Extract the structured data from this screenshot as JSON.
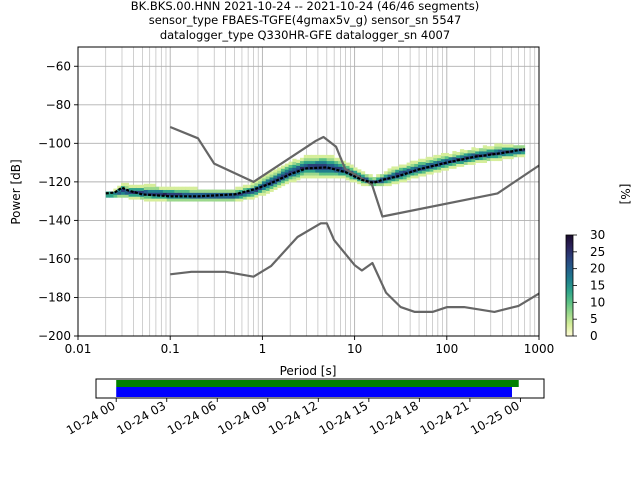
{
  "chart_data": [
    {
      "type": "heatmap",
      "title_lines": [
        "BK.BKS.00.HNN   2021-10-24 -- 2021-10-24  (46/46 segments)",
        "sensor_type FBAES-TGFE(4gmax5v_g) sensor_sn 5547",
        "datalogger_type Q330HR-GFE datalogger_sn 4007"
      ],
      "xlabel": "Period [s]",
      "ylabel": "Power [dB]",
      "xscale": "log",
      "xlim": [
        0.01,
        1000
      ],
      "ylim": [
        -200,
        -50
      ],
      "xticks": [
        0.01,
        0.1,
        1,
        10,
        100,
        1000
      ],
      "xtick_labels": [
        "0.01",
        "0.1",
        "1",
        "10",
        "100",
        "1000"
      ],
      "yticks": [
        -200,
        -180,
        -160,
        -140,
        -120,
        -100,
        -80,
        -60
      ],
      "ytick_labels": [
        "−200",
        "−180",
        "−160",
        "−140",
        "−120",
        "−100",
        "−80",
        "−60"
      ],
      "grid": true,
      "colorbar": {
        "label": "[%]",
        "range": [
          0,
          30
        ],
        "ticks": [
          0,
          5,
          10,
          15,
          20,
          25,
          30
        ],
        "tick_labels": [
          "0",
          "5",
          "10",
          "15",
          "20",
          "25",
          "30"
        ],
        "colormap": [
          "#fffbd6",
          "#d6ee9b",
          "#9bd88c",
          "#5cc185",
          "#2fa38a",
          "#1f7f8d",
          "#245e8a",
          "#2a3f7a",
          "#2a2158",
          "#1a0c2c"
        ]
      },
      "series": [
        {
          "role": "noise-model-high",
          "color": "#666666",
          "x": [
            0.1,
            0.2,
            0.3,
            0.8,
            3.8,
            4.6,
            6.3,
            7.9,
            15.4,
            20,
            354.8,
            1000
          ],
          "y": [
            -91.5,
            -97.4,
            -110.5,
            -120,
            -98.7,
            -96.7,
            -101.8,
            -113.3,
            -121.3,
            -138,
            -126,
            -111.5
          ]
        },
        {
          "role": "noise-model-low",
          "color": "#666666",
          "x": [
            0.1,
            0.17,
            0.4,
            0.8,
            1.24,
            2.4,
            4.3,
            5.0,
            6.0,
            10,
            12,
            15.6,
            21.9,
            31.6,
            45,
            70,
            101,
            154,
            328,
            600,
            1000
          ],
          "y": [
            -168,
            -166.7,
            -166.7,
            -169.2,
            -163.7,
            -148.6,
            -141.5,
            -141.5,
            -150.2,
            -163.2,
            -166,
            -162.1,
            -177.5,
            -185,
            -187.5,
            -187.5,
            -185,
            -185,
            -187.5,
            -184.4,
            -178
          ]
        },
        {
          "role": "mode",
          "color": "#000000",
          "x": [
            0.02,
            0.025,
            0.03,
            0.035,
            0.05,
            0.1,
            0.2,
            0.5,
            0.8,
            1.2,
            2,
            3,
            5,
            8,
            12,
            16,
            20,
            30,
            50,
            100,
            200,
            400,
            700
          ],
          "y": [
            -126,
            -125.5,
            -123,
            -124.5,
            -126.5,
            -127.5,
            -127.5,
            -126.5,
            -124,
            -121,
            -116,
            -113,
            -112.5,
            -115,
            -119,
            -120.5,
            -119,
            -117,
            -113.5,
            -110,
            -107,
            -105,
            -103
          ]
        }
      ],
      "density_band": {
        "x": [
          0.02,
          0.025,
          0.03,
          0.035,
          0.05,
          0.1,
          0.2,
          0.5,
          0.8,
          1.2,
          2,
          3,
          5,
          8,
          12,
          16,
          20,
          30,
          50,
          100,
          200,
          400,
          700
        ],
        "y_low": [
          -128,
          -128,
          -128,
          -128,
          -129,
          -130,
          -130,
          -130,
          -128,
          -125,
          -120,
          -117,
          -118,
          -118,
          -121,
          -122,
          -122,
          -120,
          -117,
          -113,
          -110,
          -108,
          -106
        ],
        "y_high": [
          -125,
          -125,
          -121,
          -122,
          -122,
          -123,
          -124,
          -124,
          -121,
          -116,
          -110,
          -107,
          -106,
          -110,
          -115,
          -118,
          -116,
          -112,
          -109,
          -106,
          -103,
          -101,
          -101
        ]
      }
    },
    {
      "type": "timeline",
      "tick_labels": [
        "10-24 00",
        "10-24 03",
        "10-24 06",
        "10-24 09",
        "10-24 12",
        "10-24 15",
        "10-24 18",
        "10-24 21",
        "10-25 00"
      ],
      "xlim_hours": [
        -1.2,
        25.4
      ],
      "bars": [
        {
          "role": "available",
          "color": "#008000",
          "start_hour": 0,
          "end_hour": 23.9
        },
        {
          "role": "used",
          "color": "#0000ff",
          "start_hour": 0,
          "end_hour": 23.5
        }
      ]
    }
  ]
}
